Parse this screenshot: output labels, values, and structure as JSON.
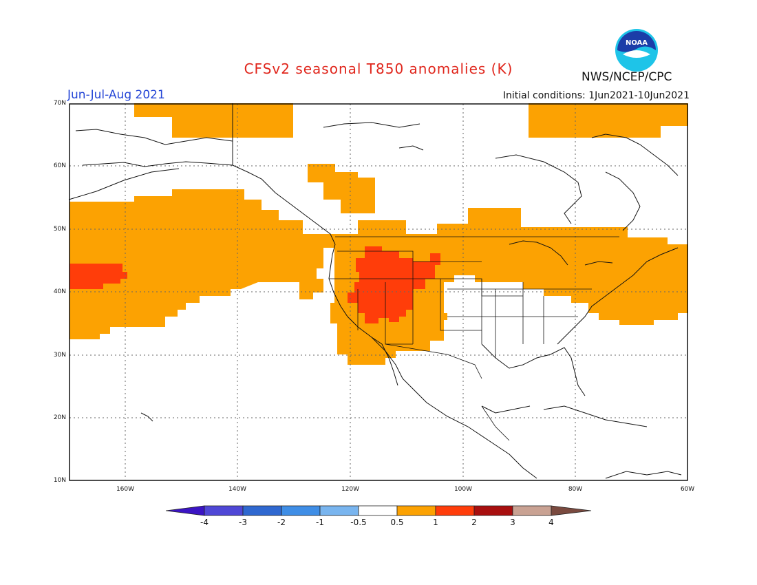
{
  "header": {
    "title": "CFSv2 seasonal T850 anomalies (K)",
    "season": "Jun-Jul-Aug 2021",
    "initial_conditions": "Initial conditions: 1Jun2021-10Jun2021",
    "organization": "NWS/NCEP/CPC",
    "logo_text": "NOAA"
  },
  "axes": {
    "lat_labels": [
      "70N",
      "60N",
      "50N",
      "40N",
      "30N",
      "20N",
      "10N"
    ],
    "lon_labels": [
      "160W",
      "140W",
      "120W",
      "100W",
      "80W",
      "60W"
    ]
  },
  "colorbar": {
    "labels": [
      "-4",
      "-3",
      "-2",
      "-1",
      "-0.5",
      "0.5",
      "1",
      "2",
      "3",
      "4"
    ],
    "colors": [
      "#3b14c4",
      "#4f47d6",
      "#2f68d0",
      "#3f8ee6",
      "#79b5ef",
      "#ffffff",
      "#fca202",
      "#ff3d0a",
      "#a80f0f",
      "#c9a293",
      "#7a4a3f"
    ]
  },
  "colors": {
    "anomaly_0_5_1": "#fca202",
    "anomaly_1_2": "#ff3d0a",
    "title": "#e0251b",
    "season": "#2546d6"
  }
}
